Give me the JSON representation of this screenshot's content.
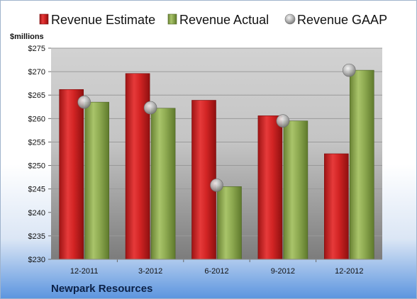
{
  "chart_data": {
    "type": "bar",
    "categories": [
      "12-2011",
      "3-2012",
      "6-2012",
      "9-2012",
      "12-2012"
    ],
    "series": [
      {
        "name": "Revenue Estimate",
        "kind": "bar",
        "color": "#cc1f1f",
        "values": [
          266.2,
          269.6,
          263.9,
          260.6,
          252.5
        ]
      },
      {
        "name": "Revenue Actual",
        "kind": "bar",
        "color": "#8aa64a",
        "values": [
          263.5,
          262.2,
          245.5,
          259.5,
          270.3
        ]
      },
      {
        "name": "Revenue GAAP",
        "kind": "point",
        "color": "#a8a8a8",
        "values": [
          263.5,
          262.3,
          245.8,
          259.5,
          270.3
        ]
      }
    ],
    "ylabel": "$millions",
    "ylim": [
      230,
      275
    ],
    "yticks": [
      230,
      235,
      240,
      245,
      250,
      255,
      260,
      265,
      270,
      275
    ],
    "ytick_labels": [
      "$230",
      "$235",
      "$240",
      "$245",
      "$250",
      "$255",
      "$260",
      "$265",
      "$270",
      "$275"
    ],
    "grid": true,
    "legend": "top"
  },
  "footer": {
    "company": "Newpark Resources"
  }
}
